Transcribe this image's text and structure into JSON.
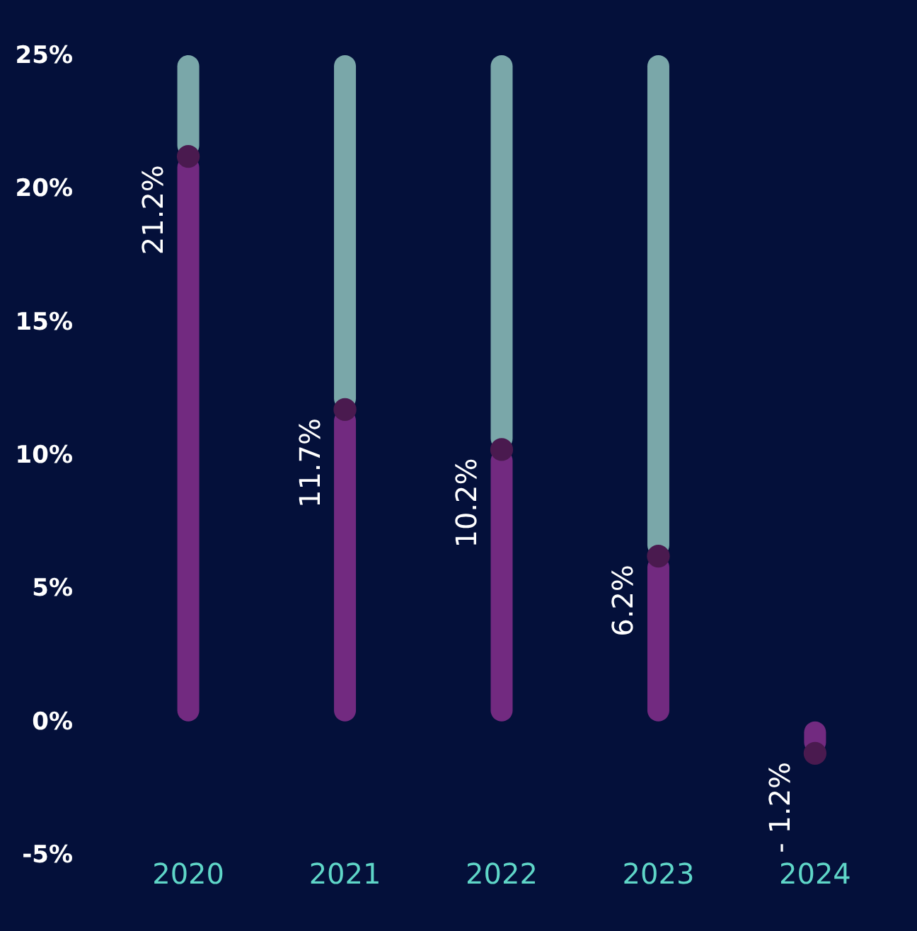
{
  "chart_data": {
    "type": "bar",
    "stacked": true,
    "categories": [
      "2020",
      "2021",
      "2022",
      "2023",
      "2024"
    ],
    "series": [
      {
        "color": "#722a80",
        "values": [
          21.2,
          11.7,
          10.2,
          6.2,
          -1.2
        ],
        "value_labels": [
          "21.2%",
          "11.7%",
          "10.2%",
          "6.2%",
          "- 1.2%"
        ]
      },
      {
        "color": "#7aa7a9",
        "values": [
          3.8,
          13.3,
          14.8,
          18.8,
          null
        ]
      },
      {
        "type": "scatter",
        "marker": "circle",
        "color": "#4a1a4f",
        "values": [
          21.2,
          11.7,
          10.2,
          6.2,
          -1.2
        ]
      }
    ],
    "ylim": [
      -5,
      25
    ],
    "yticks": [
      {
        "value": -5,
        "label": "-5%"
      },
      {
        "value": 0,
        "label": "0%"
      },
      {
        "value": 5,
        "label": "5%"
      },
      {
        "value": 10,
        "label": "10%"
      },
      {
        "value": 15,
        "label": "15%"
      },
      {
        "value": 20,
        "label": "20%"
      },
      {
        "value": 25,
        "label": "25%"
      }
    ],
    "grid": false
  }
}
